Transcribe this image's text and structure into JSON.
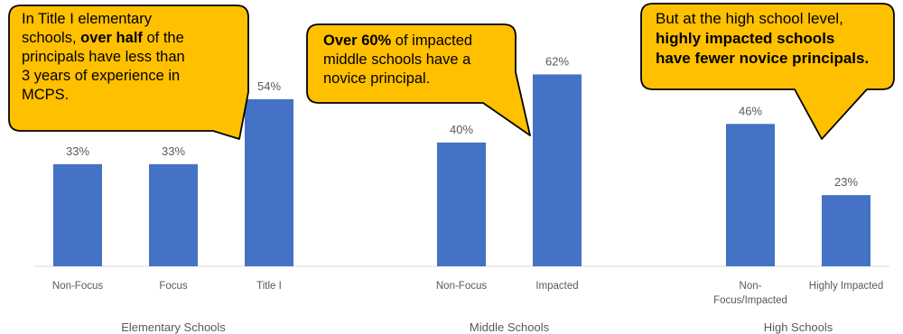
{
  "chart_data": {
    "type": "bar",
    "ylim": [
      0,
      70
    ],
    "bar_color": "#4472C4",
    "groups": [
      {
        "label": "Elementary Schools",
        "bars": [
          {
            "category": "Non-Focus",
            "value": 33,
            "label": "33%"
          },
          {
            "category": "Focus",
            "value": 33,
            "label": "33%"
          },
          {
            "category": "Title I",
            "value": 54,
            "label": "54%"
          }
        ]
      },
      {
        "label": "Middle Schools",
        "bars": [
          {
            "category": "Non-Focus",
            "value": 40,
            "label": "40%"
          },
          {
            "category": "Impacted",
            "value": 62,
            "label": "62%"
          }
        ]
      },
      {
        "label": "High Schools",
        "bars": [
          {
            "category": "Non-\nFocus/Impacted",
            "value": 46,
            "label": "46%"
          },
          {
            "category": "Highly Impacted",
            "value": 23,
            "label": "23%"
          }
        ]
      }
    ]
  },
  "callouts": {
    "color": "#FFC000",
    "elementary": {
      "line1": "In Title I elementary",
      "line2_pre": "schools, ",
      "line2_bold": "over half",
      "line2_post": " of the",
      "line3": "principals have less than",
      "line4": "3 years of experience in",
      "line5": "MCPS."
    },
    "middle": {
      "line1_bold": "Over 60%",
      "line1_post": " of impacted",
      "line2": "middle schools have a",
      "line3": "novice principal."
    },
    "high": {
      "line1": "But at the high school level,",
      "line2_bold": "highly impacted schools",
      "line3_bold": "have fewer novice principals."
    }
  }
}
